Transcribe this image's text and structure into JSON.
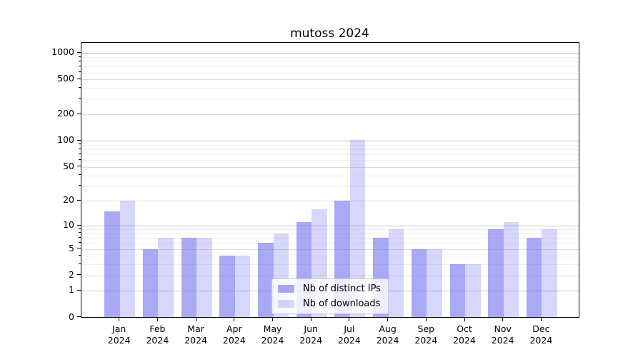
{
  "title": "mutoss 2024",
  "colors": {
    "bar_base": "#6666EE",
    "grid_decade": "#c6c6c6",
    "grid_major": "#dddddd",
    "grid_minor": "#efefef",
    "axis": "#000000",
    "legend_border": "#cccccc"
  },
  "chart_data": {
    "type": "bar",
    "title": "mutoss 2024",
    "categories": [
      "Jan 2024",
      "Feb 2024",
      "Mar 2024",
      "Apr 2024",
      "May 2024",
      "Jun 2024",
      "Jul 2024",
      "Aug 2024",
      "Sep 2024",
      "Oct 2024",
      "Nov 2024",
      "Dec 2024"
    ],
    "series": [
      {
        "name": "Nb of distinct IPs",
        "color": "#6666EE",
        "alpha": 0.56,
        "values": [
          15,
          5,
          7,
          4,
          6,
          11,
          20,
          7,
          5,
          3,
          9,
          7
        ]
      },
      {
        "name": "Nb of downloads",
        "color": "#6666EE",
        "alpha": 0.26,
        "values": [
          20,
          7,
          7,
          4,
          8,
          16,
          103,
          9,
          5,
          3,
          11,
          9
        ]
      }
    ],
    "xlabel": "",
    "ylabel": "",
    "yscale": "log1p",
    "yticks": [
      0,
      1,
      2,
      5,
      10,
      20,
      50,
      100,
      200,
      500,
      1000
    ],
    "ylim": [
      0,
      1300
    ],
    "grid": true,
    "legend_position": "lower center"
  }
}
